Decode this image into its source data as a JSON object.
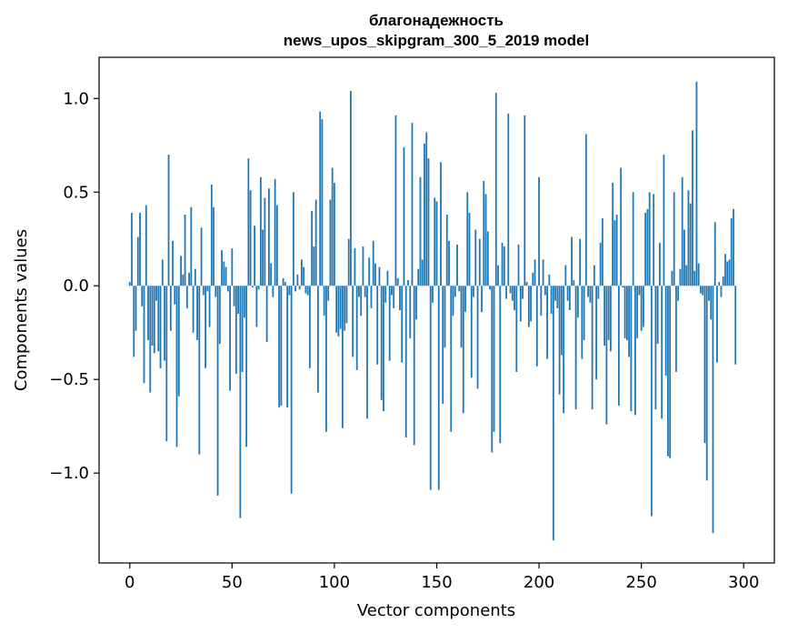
{
  "chart_data": {
    "type": "bar",
    "title_line1": "благонадежность",
    "title_line2": "news_upos_skipgram_300_5_2019 model",
    "xlabel": "Vector components",
    "ylabel": "Components values",
    "xlim": [
      -15,
      315
    ],
    "ylim": [
      -1.48,
      1.22
    ],
    "xticks": [
      0,
      50,
      100,
      150,
      200,
      250,
      300
    ],
    "xtick_labels": [
      "0",
      "50",
      "100",
      "150",
      "200",
      "250",
      "300"
    ],
    "yticks": [
      -1.0,
      -0.5,
      0.0,
      0.5,
      1.0
    ],
    "ytick_labels": [
      "−1.0",
      "−0.5",
      "0.0",
      "0.5",
      "1.0"
    ],
    "bar_color": "#1f77b4",
    "values": [
      0.02,
      0.39,
      -0.38,
      -0.24,
      0.26,
      0.39,
      -0.11,
      -0.52,
      0.43,
      -0.29,
      -0.57,
      -0.32,
      -0.36,
      -0.08,
      -0.35,
      -0.44,
      0.14,
      -0.4,
      -0.83,
      0.7,
      -0.24,
      0.24,
      -0.1,
      -0.86,
      -0.59,
      0.16,
      0.06,
      0.38,
      -0.12,
      0.07,
      0.42,
      -0.25,
      0.09,
      -0.29,
      -0.9,
      0.31,
      -0.05,
      -0.44,
      -0.03,
      -0.22,
      0.54,
      0.42,
      -0.06,
      -1.12,
      -0.31,
      0.19,
      0.13,
      0.1,
      -0.03,
      -0.56,
      0.2,
      -0.11,
      -0.47,
      -0.15,
      -1.24,
      -0.46,
      -0.17,
      -0.86,
      0.68,
      0.51,
      -0.01,
      0.32,
      -0.22,
      -0.02,
      0.58,
      0.3,
      0.47,
      -0.3,
      0.52,
      0.12,
      -0.06,
      0.57,
      0.43,
      -0.65,
      -0.64,
      0.04,
      0.02,
      -0.65,
      -0.05,
      -1.11,
      0.5,
      -0.03,
      0.06,
      -0.02,
      0.14,
      0.1,
      -0.04,
      -0.05,
      -0.44,
      0.4,
      0.21,
      0.46,
      -0.57,
      0.93,
      0.89,
      -0.16,
      -0.78,
      -0.08,
      0.46,
      0.63,
      0.55,
      -0.25,
      -0.27,
      -0.23,
      -0.76,
      -0.24,
      -0.2,
      0.25,
      1.04,
      -0.38,
      0.2,
      -0.45,
      -0.06,
      -0.16,
      0.21,
      -0.06,
      -0.71,
      0.15,
      -0.12,
      0.24,
      0.12,
      -0.42,
      0.1,
      -0.61,
      -0.67,
      -0.09,
      0.08,
      -0.4,
      -0.05,
      -0.12,
      0.91,
      0.04,
      -0.13,
      -0.41,
      0.74,
      -0.81,
      0.03,
      -0.28,
      0.87,
      -0.85,
      -0.18,
      0.09,
      0.58,
      0.14,
      0.76,
      0.82,
      0.68,
      -1.09,
      -0.09,
      0.47,
      0.45,
      -1.09,
      0.66,
      -0.63,
      -0.33,
      0.38,
      0.24,
      -0.78,
      -0.16,
      -0.06,
      0.22,
      -0.03,
      -0.33,
      -0.68,
      -0.14,
      0.5,
      0.39,
      -0.49,
      -0.06,
      0.3,
      -0.55,
      0.25,
      -0.14,
      0.56,
      0.49,
      0.29,
      -0.02,
      -0.89,
      -0.78,
      1.03,
      0.11,
      -0.84,
      0.23,
      0.21,
      -0.07,
      0.92,
      -0.04,
      -0.08,
      -0.13,
      -0.46,
      0.22,
      -0.19,
      -0.07,
      0.91,
      0.02,
      -0.22,
      -0.19,
      0.07,
      0.14,
      -0.43,
      0.58,
      -0.16,
      0.14,
      -0.05,
      -0.39,
      0.06,
      -0.15,
      -1.36,
      -0.08,
      -0.12,
      -0.58,
      -0.37,
      -0.68,
      0.11,
      -0.08,
      -0.13,
      0.26,
      0.03,
      -0.66,
      -0.17,
      0.25,
      -0.39,
      -0.29,
      0.81,
      -0.06,
      -0.09,
      -0.66,
      0.11,
      -0.5,
      -0.07,
      0.23,
      0.36,
      -0.32,
      -0.74,
      -0.29,
      -0.35,
      0.55,
      0.35,
      0.38,
      -0.64,
      0.63,
      -0.01,
      -0.28,
      -0.29,
      -0.38,
      -0.67,
      0.5,
      -0.69,
      -0.28,
      -0.05,
      -0.24,
      -0.22,
      0.39,
      0.41,
      0.5,
      -1.23,
      0.49,
      -0.66,
      -0.31,
      0.23,
      -0.71,
      0.7,
      -0.48,
      -0.91,
      -0.92,
      0.08,
      0.5,
      -0.46,
      -0.08,
      0.09,
      0.58,
      0.3,
      0.11,
      0.51,
      0.44,
      0.83,
      0.08,
      1.09,
      0.12,
      -0.04,
      -0.05,
      -0.84,
      -1.04,
      -0.08,
      -0.18,
      -1.32,
      0.34,
      -0.41,
      0.02,
      -0.06,
      0.05,
      0.17,
      0.13,
      0.14,
      0.36,
      0.41,
      -0.42
    ]
  }
}
